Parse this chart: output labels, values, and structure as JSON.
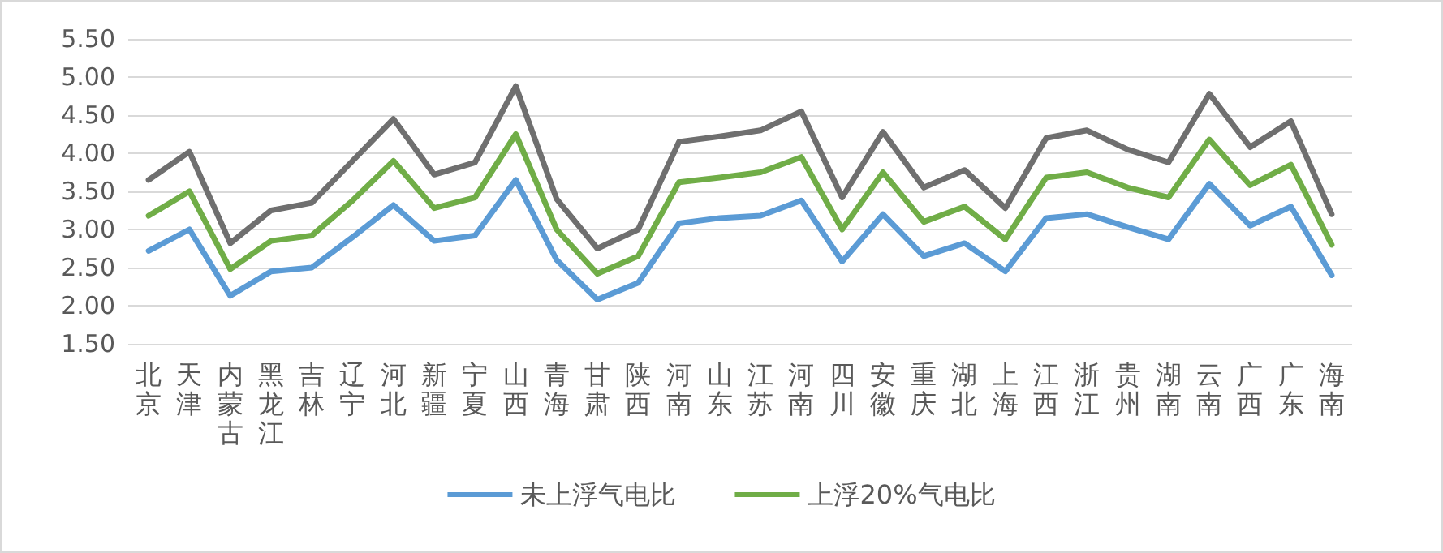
{
  "chart_data": {
    "type": "line",
    "categories": [
      "北京",
      "天津",
      "内蒙古",
      "黑龙江",
      "吉林",
      "辽宁",
      "河北",
      "新疆",
      "宁夏",
      "山西",
      "青海",
      "甘肃",
      "陕西",
      "河南",
      "山东",
      "江苏",
      "河南",
      "四川",
      "安徽",
      "重庆",
      "湖北",
      "上海",
      "江西",
      "浙江",
      "贵州",
      "湖南",
      "云南",
      "广西",
      "广东",
      "海南"
    ],
    "series": [
      {
        "name": "未上浮气电比",
        "color": "#5b9bd5",
        "values": [
          2.72,
          3.0,
          2.13,
          2.45,
          2.5,
          2.9,
          3.32,
          2.85,
          2.92,
          3.65,
          2.6,
          2.08,
          2.3,
          3.08,
          3.15,
          3.18,
          3.38,
          2.58,
          3.2,
          2.65,
          2.82,
          2.45,
          3.15,
          3.2,
          3.03,
          2.87,
          3.6,
          3.05,
          3.3,
          2.4
        ]
      },
      {
        "name": "上浮20%气电比",
        "color": "#70ad47",
        "values": [
          3.18,
          3.5,
          2.48,
          2.85,
          2.92,
          3.38,
          3.9,
          3.28,
          3.42,
          4.25,
          3.0,
          2.42,
          2.65,
          3.62,
          3.68,
          3.75,
          3.95,
          3.0,
          3.75,
          3.1,
          3.3,
          2.87,
          3.68,
          3.75,
          3.55,
          3.42,
          4.18,
          3.58,
          3.85,
          2.8
        ]
      },
      {
        "color": "#6f6f6f",
        "values": [
          3.65,
          4.02,
          2.82,
          3.25,
          3.35,
          3.9,
          4.45,
          3.72,
          3.88,
          4.88,
          3.4,
          2.75,
          3.0,
          4.15,
          4.22,
          4.3,
          4.55,
          3.42,
          4.28,
          3.55,
          3.78,
          3.28,
          4.2,
          4.3,
          4.05,
          3.88,
          4.78,
          4.08,
          4.42,
          3.2
        ]
      }
    ],
    "ylim": [
      1.5,
      5.5
    ],
    "yticks": [
      {
        "value": 1.5,
        "label": "1.50"
      },
      {
        "value": 2,
        "label": "2.00"
      },
      {
        "value": 2.5,
        "label": "2.50"
      },
      {
        "value": 3,
        "label": "3.00"
      },
      {
        "value": 3.5,
        "label": "3.50"
      },
      {
        "value": 4,
        "label": "4.00"
      },
      {
        "value": 4.5,
        "label": "4.50"
      },
      {
        "value": 5,
        "label": "5.00"
      },
      {
        "value": 5.5,
        "label": "5.50"
      }
    ],
    "grid": "y",
    "legend": "bottom",
    "marker": "none",
    "line_style": "solid"
  }
}
